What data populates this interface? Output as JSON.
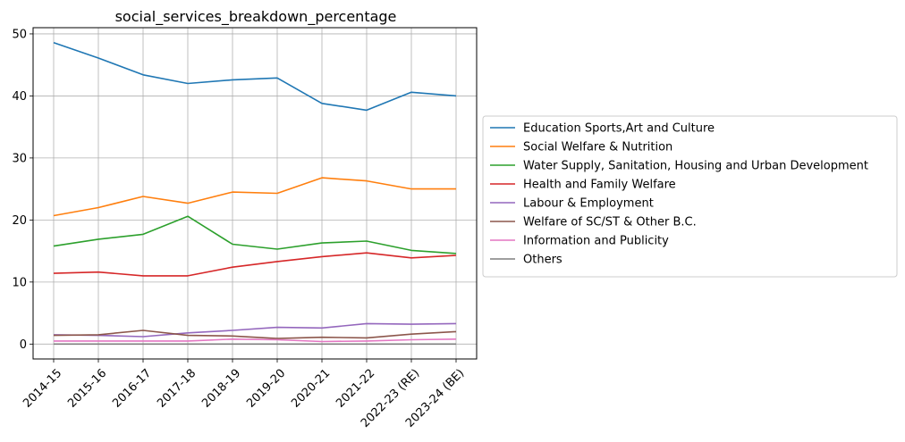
{
  "chart_data": {
    "type": "line",
    "title": "social_services_breakdown_percentage",
    "xlabel": "",
    "ylabel": "",
    "ylim": [
      -2.4,
      51
    ],
    "yticks": [
      0,
      10,
      20,
      30,
      40,
      50
    ],
    "grid": true,
    "legend_position": "right-outside",
    "categories": [
      "2014-15",
      "2015-16",
      "2016-17",
      "2017-18",
      "2018-19",
      "2019-20",
      "2020-21",
      "2021-22",
      "2022-23 (RE)",
      "2023-24 (BE)"
    ],
    "series": [
      {
        "name": "Education Sports,Art and Culture",
        "color": "#1f77b4",
        "values": [
          48.6,
          46.1,
          43.4,
          42.0,
          42.6,
          42.9,
          38.8,
          37.7,
          40.6,
          40.0
        ]
      },
      {
        "name": "Social Welfare & Nutrition",
        "color": "#ff7f0e",
        "values": [
          20.7,
          22.0,
          23.8,
          22.7,
          24.5,
          24.3,
          26.8,
          26.3,
          25.0,
          25.0
        ]
      },
      {
        "name": "Water Supply, Sanitation, Housing and Urban Development",
        "color": "#2ca02c",
        "values": [
          15.8,
          16.9,
          17.7,
          20.6,
          16.1,
          15.3,
          16.3,
          16.6,
          15.1,
          14.6
        ]
      },
      {
        "name": "Health and Family Welfare",
        "color": "#d62728",
        "values": [
          11.4,
          11.6,
          11.0,
          11.0,
          12.4,
          13.3,
          14.1,
          14.7,
          13.9,
          14.3
        ]
      },
      {
        "name": "Labour & Employment",
        "color": "#9467bd",
        "values": [
          1.5,
          1.4,
          1.2,
          1.8,
          2.2,
          2.7,
          2.6,
          3.3,
          3.2,
          3.3
        ]
      },
      {
        "name": "Welfare of SC/ST & Other B.C.",
        "color": "#8c564b",
        "values": [
          1.4,
          1.5,
          2.2,
          1.4,
          1.3,
          0.9,
          1.1,
          1.0,
          1.6,
          2.0
        ]
      },
      {
        "name": "Information and Publicity",
        "color": "#e377c2",
        "values": [
          0.5,
          0.5,
          0.5,
          0.5,
          0.8,
          0.7,
          0.4,
          0.5,
          0.7,
          0.8
        ]
      },
      {
        "name": "Others",
        "color": "#7f7f7f",
        "values": [
          0.0,
          0.0,
          0.0,
          0.0,
          0.0,
          0.0,
          0.0,
          0.0,
          0.0,
          0.0
        ]
      }
    ]
  }
}
